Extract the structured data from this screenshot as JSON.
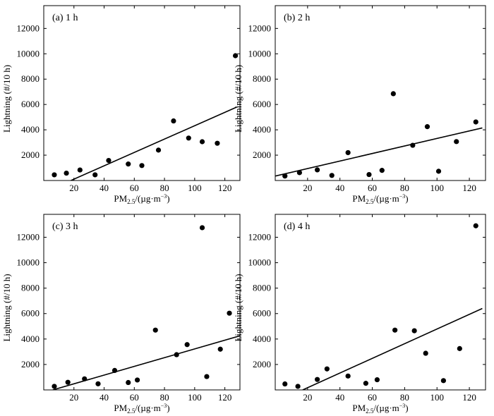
{
  "chart_data": [
    {
      "type": "scatter",
      "panel_label": "(a) 1 h",
      "xlabel": "PM2.5/(µg·m⁻³)",
      "ylabel": "Lightning (#/10 h)",
      "xlim": [
        0,
        130
      ],
      "ylim": [
        0,
        13800
      ],
      "xticks": [
        20,
        40,
        60,
        80,
        100,
        120
      ],
      "yticks": [
        2000,
        4000,
        6000,
        8000,
        10000,
        12000
      ],
      "points": [
        [
          7,
          450
        ],
        [
          15,
          580
        ],
        [
          24,
          830
        ],
        [
          34,
          450
        ],
        [
          43,
          1580
        ],
        [
          56,
          1300
        ],
        [
          65,
          1180
        ],
        [
          76,
          2400
        ],
        [
          86,
          4700
        ],
        [
          96,
          3350
        ],
        [
          105,
          3060
        ],
        [
          115,
          2940
        ],
        [
          127,
          9850
        ]
      ],
      "fit_line": [
        [
          18,
          0
        ],
        [
          128,
          5800
        ]
      ]
    },
    {
      "type": "scatter",
      "panel_label": "(b) 2 h",
      "xlabel": "PM2.5/(µg·m⁻³)",
      "ylabel": "Lightning (#/10 h)",
      "xlim": [
        0,
        130
      ],
      "ylim": [
        0,
        13800
      ],
      "xticks": [
        20,
        40,
        60,
        80,
        100,
        120
      ],
      "yticks": [
        2000,
        4000,
        6000,
        8000,
        10000,
        12000
      ],
      "points": [
        [
          6,
          350
        ],
        [
          15,
          620
        ],
        [
          26,
          840
        ],
        [
          35,
          400
        ],
        [
          45,
          2200
        ],
        [
          58,
          470
        ],
        [
          66,
          800
        ],
        [
          73,
          6850
        ],
        [
          85,
          2780
        ],
        [
          94,
          4250
        ],
        [
          101,
          730
        ],
        [
          112,
          3070
        ],
        [
          124,
          4620
        ]
      ],
      "fit_line": [
        [
          0,
          350
        ],
        [
          128,
          4150
        ]
      ]
    },
    {
      "type": "scatter",
      "panel_label": "(c) 3 h",
      "xlabel": "PM2.5/(µg·m⁻³)",
      "ylabel": "Lightning (#/10 h)",
      "xlim": [
        0,
        130
      ],
      "ylim": [
        0,
        13800
      ],
      "xticks": [
        20,
        40,
        60,
        80,
        100,
        120
      ],
      "yticks": [
        2000,
        4000,
        6000,
        8000,
        10000,
        12000
      ],
      "points": [
        [
          7,
          280
        ],
        [
          16,
          600
        ],
        [
          27,
          870
        ],
        [
          36,
          480
        ],
        [
          47,
          1530
        ],
        [
          56,
          580
        ],
        [
          62,
          780
        ],
        [
          74,
          4700
        ],
        [
          88,
          2770
        ],
        [
          95,
          3560
        ],
        [
          105,
          12750
        ],
        [
          108,
          1050
        ],
        [
          117,
          3200
        ],
        [
          123,
          6030
        ]
      ],
      "fit_line": [
        [
          6,
          0
        ],
        [
          130,
          4250
        ]
      ]
    },
    {
      "type": "scatter",
      "panel_label": "(d) 4 h",
      "xlabel": "PM2.5/(µg·m⁻³)",
      "ylabel": "Lightning (#/10 h)",
      "xlim": [
        0,
        130
      ],
      "ylim": [
        0,
        13800
      ],
      "xticks": [
        20,
        40,
        60,
        80,
        100,
        120
      ],
      "yticks": [
        2000,
        4000,
        6000,
        8000,
        10000,
        12000
      ],
      "points": [
        [
          6,
          470
        ],
        [
          14,
          280
        ],
        [
          26,
          820
        ],
        [
          32,
          1650
        ],
        [
          45,
          1090
        ],
        [
          56,
          520
        ],
        [
          63,
          800
        ],
        [
          74,
          4700
        ],
        [
          86,
          4650
        ],
        [
          93,
          2880
        ],
        [
          104,
          730
        ],
        [
          114,
          3250
        ],
        [
          124,
          12900
        ]
      ],
      "fit_line": [
        [
          17,
          0
        ],
        [
          128,
          6400
        ]
      ]
    }
  ]
}
